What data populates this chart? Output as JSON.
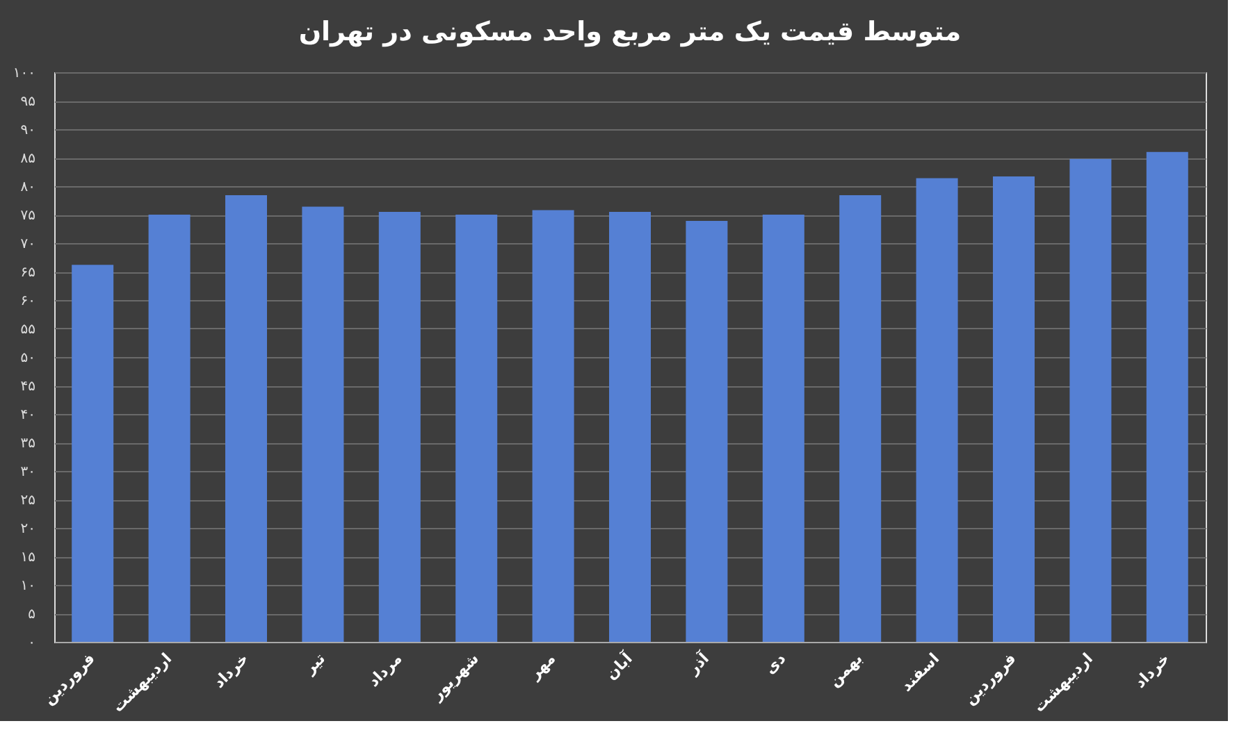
{
  "chart_data": {
    "type": "bar",
    "title": "متوسط قیمت یک متر مربع واحد مسکونی در تهران",
    "categories": [
      "فروردین",
      "اردیبهشت",
      "خرداد",
      "تیر",
      "مرداد",
      "شهریور",
      "مهر",
      "آبان",
      "آذر",
      "دی",
      "بهمن",
      "اسفند",
      "فروردین",
      "اردیبهشت",
      "خرداد"
    ],
    "values": [
      66.2,
      75,
      78.4,
      76.4,
      75.5,
      75,
      75.8,
      75.5,
      73.9,
      75,
      78.4,
      81.4,
      81.7,
      84.8,
      86
    ],
    "color": "#5580d4",
    "ylim": [
      0,
      100
    ],
    "yticks": [
      {
        "value": 0,
        "label": "۰"
      },
      {
        "value": 5,
        "label": "۵"
      },
      {
        "value": 10,
        "label": "۱۰"
      },
      {
        "value": 15,
        "label": "۱۵"
      },
      {
        "value": 20,
        "label": "۲۰"
      },
      {
        "value": 25,
        "label": "۲۵"
      },
      {
        "value": 30,
        "label": "۳۰"
      },
      {
        "value": 35,
        "label": "۳۵"
      },
      {
        "value": 40,
        "label": "۴۰"
      },
      {
        "value": 45,
        "label": "۴۵"
      },
      {
        "value": 50,
        "label": "۵۰"
      },
      {
        "value": 55,
        "label": "۵۵"
      },
      {
        "value": 60,
        "label": "۶۰"
      },
      {
        "value": 65,
        "label": "۶۵"
      },
      {
        "value": 70,
        "label": "۷۰"
      },
      {
        "value": 75,
        "label": "۷۵"
      },
      {
        "value": 80,
        "label": "۸۰"
      },
      {
        "value": 85,
        "label": "۸۵"
      },
      {
        "value": 90,
        "label": "۹۰"
      },
      {
        "value": 95,
        "label": "۹۵"
      },
      {
        "value": 100,
        "label": "۱۰۰"
      }
    ],
    "grid": "y"
  }
}
